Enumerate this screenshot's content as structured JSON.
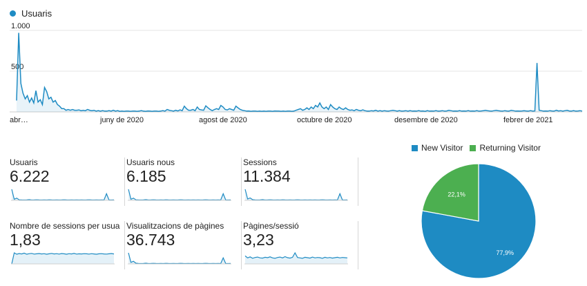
{
  "timeline": {
    "legend_label": "Usuaris",
    "color": "#1e8bc3",
    "y_ticks": [
      "1.000",
      "500"
    ],
    "x_labels": [
      "abr…",
      "juny de 2020",
      "agost de 2020",
      "octubre de 2020",
      "desembre de 2020",
      "febrer de 2021"
    ]
  },
  "chart_data": [
    {
      "type": "line",
      "series": [
        {
          "name": "Usuaris",
          "values": [
            140,
            970,
            350,
            230,
            160,
            200,
            120,
            170,
            110,
            260,
            120,
            150,
            90,
            300,
            250,
            160,
            180,
            120,
            140,
            90,
            70,
            40,
            40,
            20,
            30,
            20,
            30,
            20,
            20,
            25,
            15,
            20,
            15,
            30,
            20,
            15,
            20,
            10,
            15,
            10,
            15,
            10,
            10,
            15,
            10,
            20,
            10,
            15,
            8,
            10,
            8,
            10,
            10,
            8,
            10,
            10,
            8,
            10,
            15,
            10,
            8,
            12,
            10,
            8,
            10,
            10,
            8,
            10,
            15,
            10,
            30,
            20,
            15,
            10,
            20,
            12,
            25,
            15,
            70,
            40,
            20,
            20,
            30,
            15,
            60,
            30,
            25,
            20,
            75,
            50,
            30,
            15,
            30,
            40,
            30,
            80,
            60,
            30,
            25,
            40,
            30,
            20,
            70,
            50,
            30,
            20,
            15,
            10,
            12,
            8,
            10,
            10,
            8,
            10,
            8,
            10,
            8,
            10,
            10,
            8,
            12,
            10,
            10,
            8,
            10,
            8,
            10,
            10,
            8,
            10,
            20,
            30,
            40,
            20,
            30,
            50,
            30,
            60,
            40,
            80,
            60,
            110,
            60,
            40,
            60,
            30,
            90,
            60,
            40,
            30,
            60,
            40,
            30,
            50,
            30,
            20,
            25,
            15,
            30,
            20,
            15,
            25,
            15,
            10,
            10,
            15,
            12,
            20,
            10,
            15,
            10,
            15,
            12,
            10,
            15,
            20,
            15,
            10,
            15,
            10,
            12,
            15,
            10,
            15,
            10,
            12,
            10,
            15,
            10,
            12,
            8,
            15,
            10,
            12,
            10,
            15,
            10,
            12,
            15,
            10,
            12,
            20,
            15,
            10,
            12,
            10,
            15,
            10,
            12,
            10,
            15,
            10,
            12,
            10,
            15,
            10,
            12,
            15,
            20,
            15,
            12,
            10,
            15,
            20,
            15,
            12,
            10,
            15,
            12,
            10,
            20,
            15,
            10,
            12,
            10,
            12,
            15,
            12,
            10,
            15,
            10,
            12,
            600,
            20,
            15,
            10,
            12,
            10,
            15,
            12,
            10,
            20,
            12,
            15,
            10,
            15,
            20,
            12,
            10,
            15,
            10,
            12,
            15,
            10
          ]
        }
      ],
      "y_ticks": [
        "1.000",
        "500"
      ],
      "x_labels": [
        "abr…",
        "juny de 2020",
        "agost de 2020",
        "octubre de 2020",
        "desembre de 2020",
        "febrer de 2021"
      ],
      "ylim": [
        0,
        1000
      ]
    },
    {
      "type": "pie",
      "slices": [
        {
          "label": "New Visitor",
          "value": 77.9,
          "display": "77,9%",
          "color": "#1e8bc3"
        },
        {
          "label": "Returning Visitor",
          "value": 22.1,
          "display": "22,1%",
          "color": "#4caf50"
        }
      ]
    }
  ],
  "metrics": [
    {
      "label": "Usuaris",
      "value": "6.222",
      "spark": [
        100,
        10,
        20,
        5,
        4,
        3,
        4,
        6,
        3,
        4,
        5,
        4,
        3,
        4,
        3,
        5,
        4,
        3,
        4,
        3,
        4,
        5,
        4,
        3,
        4,
        3,
        4,
        3,
        4,
        3,
        4,
        5,
        4,
        3,
        4,
        3,
        4,
        3,
        60,
        4,
        3,
        4
      ]
    },
    {
      "label": "Usuaris nous",
      "value": "6.185",
      "spark": [
        100,
        10,
        20,
        5,
        4,
        3,
        4,
        6,
        3,
        4,
        5,
        4,
        3,
        4,
        3,
        5,
        4,
        3,
        4,
        3,
        4,
        5,
        4,
        3,
        4,
        3,
        4,
        3,
        4,
        3,
        4,
        5,
        4,
        3,
        4,
        3,
        4,
        3,
        60,
        4,
        3,
        4
      ]
    },
    {
      "label": "Sessions",
      "value": "11.384",
      "spark": [
        100,
        12,
        22,
        6,
        4,
        3,
        4,
        6,
        3,
        4,
        5,
        4,
        3,
        4,
        3,
        5,
        4,
        3,
        4,
        3,
        4,
        5,
        4,
        3,
        4,
        3,
        4,
        3,
        4,
        3,
        4,
        5,
        4,
        3,
        4,
        3,
        4,
        3,
        60,
        4,
        3,
        4
      ]
    },
    {
      "label": "Nombre de sessions per usuari",
      "value": "1,83",
      "spark": [
        0,
        80,
        70,
        75,
        72,
        78,
        70,
        74,
        76,
        71,
        73,
        75,
        72,
        74,
        70,
        73,
        76,
        72,
        74,
        71,
        75,
        73,
        70,
        74,
        72,
        76,
        71,
        73,
        72,
        74,
        73,
        71,
        74,
        72,
        70,
        73,
        74,
        72,
        71,
        73,
        75,
        72
      ]
    },
    {
      "label": "Visualitzacions de pàgines",
      "value": "36.743",
      "spark": [
        100,
        14,
        24,
        6,
        4,
        3,
        4,
        6,
        3,
        4,
        5,
        4,
        3,
        4,
        3,
        5,
        4,
        3,
        4,
        3,
        4,
        5,
        4,
        3,
        4,
        3,
        4,
        3,
        4,
        3,
        4,
        5,
        4,
        3,
        4,
        3,
        4,
        3,
        55,
        4,
        3,
        4
      ]
    },
    {
      "label": "Pàgines/sessió",
      "value": "3,23",
      "spark": [
        40,
        30,
        35,
        28,
        32,
        34,
        30,
        29,
        33,
        31,
        35,
        30,
        28,
        32,
        34,
        30,
        36,
        31,
        29,
        33,
        55,
        32,
        30,
        28,
        33,
        31,
        29,
        34,
        30,
        32,
        31,
        28,
        33,
        30,
        32,
        29,
        31,
        33,
        30,
        32,
        31,
        30
      ]
    }
  ]
}
